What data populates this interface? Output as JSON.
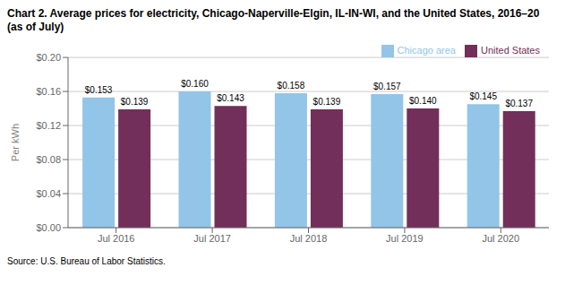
{
  "chart_data": {
    "type": "bar",
    "title": "Chart 2. Average prices for electricity, Chicago-Naperville-Elgin, IL-IN-WI, and the United States, 2016–20  (as of July)",
    "y_label": "Per kWh",
    "annotations": [
      "Source: U.S. Bureau of Labor Statistics."
    ],
    "categories": [
      "Jul 2016",
      "Jul 2017",
      "Jul 2018",
      "Jul 2019",
      "Jul 2020"
    ],
    "series": [
      {
        "name": "Chicago area",
        "color": "#92C5E8",
        "values": [
          0.153,
          0.16,
          0.158,
          0.157,
          0.145
        ],
        "value_labels": [
          "$0.153",
          "$0.160",
          "$0.158",
          "$0.157",
          "$0.145"
        ]
      },
      {
        "name": "United States",
        "color": "#722F5A",
        "values": [
          0.139,
          0.143,
          0.139,
          0.14,
          0.137
        ],
        "value_labels": [
          "$0.139",
          "$0.143",
          "$0.139",
          "$0.140",
          "$0.137"
        ]
      }
    ],
    "ylim": [
      0,
      0.2
    ],
    "yticks": [
      {
        "value": 0.0,
        "label": "$0.00"
      },
      {
        "value": 0.04,
        "label": "$0.04"
      },
      {
        "value": 0.08,
        "label": "$0.08"
      },
      {
        "value": 0.12,
        "label": "$0.12"
      },
      {
        "value": 0.16,
        "label": "$0.16"
      },
      {
        "value": 0.2,
        "label": "$0.20"
      }
    ],
    "grid": true,
    "legend": "upper right",
    "data_labels": true
  }
}
